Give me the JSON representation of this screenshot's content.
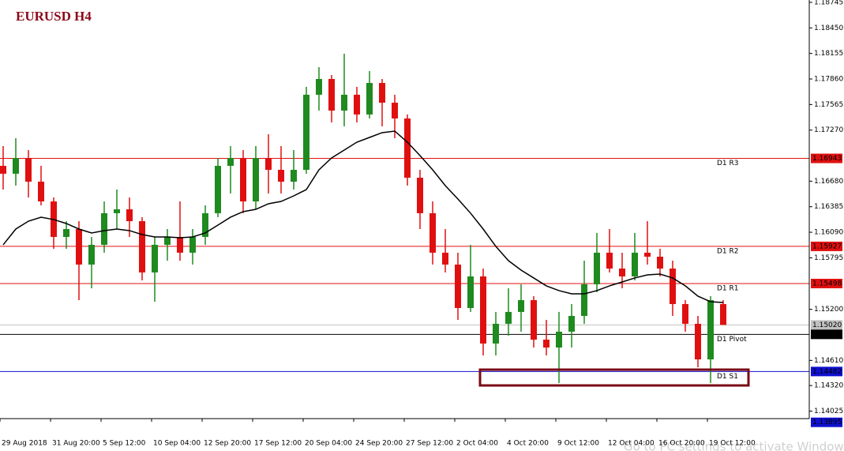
{
  "chart_data": {
    "type": "candlestick",
    "title": "EURUSD H4",
    "categories": [
      "29 Aug 2018",
      null,
      null,
      null,
      "31 Aug 20:00",
      null,
      null,
      null,
      "5 Sep 12:00",
      null,
      null,
      null,
      "10 Sep 04:00",
      null,
      null,
      null,
      "12 Sep 20:00",
      null,
      null,
      null,
      "17 Sep 12:00",
      null,
      null,
      null,
      "20 Sep 04:00",
      null,
      null,
      null,
      "24 Sep 20:00",
      null,
      null,
      null,
      "27 Sep 12:00",
      null,
      null,
      null,
      "2 Oct 04:00",
      null,
      null,
      null,
      "4 Oct 20:00",
      null,
      null,
      null,
      "9 Oct 12:00",
      null,
      null,
      null,
      "12 Oct 04:00",
      null,
      null,
      null,
      "16 Oct 20:00",
      null,
      null,
      null,
      "19 Oct 12:00",
      null
    ],
    "open": [
      1.16857,
      1.16766,
      1.16948,
      1.16674,
      1.16446,
      1.16036,
      1.16127,
      1.15717,
      1.15945,
      1.1631,
      1.16355,
      1.16218,
      1.15626,
      1.15945,
      1.16036,
      1.15854,
      1.16036,
      1.1631,
      1.16857,
      1.16948,
      1.16446,
      1.16948,
      1.16811,
      1.16674,
      1.16811,
      1.17678,
      1.1786,
      1.17495,
      1.17678,
      1.1745,
      1.17814,
      1.17586,
      1.17404,
      1.1672,
      1.1631,
      1.15854,
      1.15717,
      1.15215,
      1.1558,
      1.14805,
      1.15033,
      1.1517,
      1.15306,
      1.1485,
      1.14759,
      1.14942,
      1.15124,
      1.15489,
      1.15854,
      1.15671,
      1.1558,
      1.15854,
      1.15808,
      1.15671,
      1.15261,
      1.15033,
      1.14622,
      1.15261
    ],
    "high": [
      1.17085,
      1.17176,
      1.17039,
      1.16857,
      1.16492,
      1.16218,
      1.16218,
      1.16036,
      1.16446,
      1.16583,
      1.16492,
      1.16264,
      1.16036,
      1.16127,
      1.16446,
      1.16127,
      1.16401,
      1.16948,
      1.17085,
      1.17039,
      1.17085,
      1.17222,
      1.17085,
      1.17039,
      1.17769,
      1.17997,
      1.17906,
      1.18152,
      1.17769,
      1.17951,
      1.1786,
      1.17678,
      1.1745,
      1.16811,
      1.16446,
      1.16127,
      1.15854,
      1.15945,
      1.15671,
      1.1517,
      1.15443,
      1.15489,
      1.15352,
      1.15078,
      1.1517,
      1.15261,
      1.15762,
      1.16082,
      1.16127,
      1.15854,
      1.16082,
      1.16218,
      1.15899,
      1.15762,
      1.15306,
      1.15124,
      1.15352,
      1.15306
    ],
    "low": [
      1.16583,
      1.16629,
      1.16492,
      1.16401,
      1.15899,
      1.15899,
      1.15306,
      1.15443,
      1.15854,
      1.16127,
      1.16036,
      1.15534,
      1.15288,
      1.15762,
      1.15762,
      1.15717,
      1.15945,
      1.16264,
      1.16538,
      1.1631,
      1.16355,
      1.16538,
      1.16538,
      1.16583,
      1.16766,
      1.17495,
      1.17358,
      1.17313,
      1.17358,
      1.17404,
      1.17313,
      1.17176,
      1.16629,
      1.16127,
      1.15717,
      1.15626,
      1.15078,
      1.1517,
      1.14668,
      1.14668,
      1.14896,
      1.14942,
      1.14759,
      1.14668,
      1.14349,
      1.14759,
      1.15033,
      1.15398,
      1.15626,
      1.15443,
      1.15534,
      1.15717,
      1.1558,
      1.15124,
      1.14942,
      1.14531,
      1.14349,
      1.15033
    ],
    "close": [
      1.16766,
      1.16948,
      1.16674,
      1.16446,
      1.16036,
      1.16127,
      1.15717,
      1.15945,
      1.1631,
      1.16355,
      1.16218,
      1.15626,
      1.15945,
      1.16036,
      1.15854,
      1.16036,
      1.1631,
      1.16857,
      1.16948,
      1.16446,
      1.16948,
      1.16811,
      1.16674,
      1.16811,
      1.17678,
      1.1786,
      1.17495,
      1.17678,
      1.1745,
      1.17814,
      1.17586,
      1.17404,
      1.1672,
      1.1631,
      1.15854,
      1.15717,
      1.15215,
      1.1558,
      1.14805,
      1.15033,
      1.1517,
      1.15306,
      1.1485,
      1.14759,
      1.14942,
      1.15124,
      1.15489,
      1.15854,
      1.15671,
      1.1558,
      1.15854,
      1.15808,
      1.15671,
      1.15261,
      1.15033,
      1.14622,
      1.15306,
      1.1502
    ],
    "up_color": "#1f8a1f",
    "down_color": "#e01010",
    "ma": {
      "color": "#000000",
      "values": [
        1.15945,
        1.16127,
        1.16218,
        1.16264,
        1.16237,
        1.16191,
        1.16127,
        1.16082,
        1.16109,
        1.16127,
        1.16109,
        1.16063,
        1.16036,
        1.16036,
        1.16027,
        1.16036,
        1.16082,
        1.16173,
        1.16264,
        1.16328,
        1.16355,
        1.16419,
        1.16446,
        1.1651,
        1.16583,
        1.16811,
        1.16948,
        1.17039,
        1.1713,
        1.17185,
        1.1724,
        1.17258,
        1.1713,
        1.16975,
        1.16811,
        1.16629,
        1.16474,
        1.1631,
        1.16127,
        1.15927,
        1.15762,
        1.15653,
        1.15562,
        1.15471,
        1.15416,
        1.15379,
        1.15379,
        1.15416,
        1.15471,
        1.15516,
        1.15562,
        1.15598,
        1.15607,
        1.15562,
        1.15471,
        1.15352,
        1.15288,
        1.15279
      ]
    },
    "levels": [
      {
        "name": "D1 R3",
        "value": 1.16943,
        "tag": "1.16943",
        "color": "#e01010",
        "line": true
      },
      {
        "name": "D1 R2",
        "value": 1.15927,
        "tag": "1.15927",
        "color": "#e01010",
        "line": true
      },
      {
        "name": "D1 R1",
        "value": 1.15498,
        "tag": "1.15498",
        "color": "#e01010",
        "line": true
      },
      {
        "value": 1.1502,
        "tag": "1.15020",
        "color": "#c0c0c0",
        "line": true
      },
      {
        "name": "D1 Pivot",
        "value": 1.14911,
        "tag": "1.14911",
        "color": "#000000",
        "line": true
      },
      {
        "name": "D1 S1",
        "value": 1.14482,
        "tag": "1.14482",
        "color": "#1010d0",
        "line": true
      },
      {
        "value": 1.13895,
        "tag": "1.13895",
        "color": "#1010d0",
        "line": false
      }
    ],
    "ylim": [
      1.13938,
      1.18772
    ],
    "yticks": [
      {
        "value": 1.18745,
        "label": "1.18745"
      },
      {
        "value": 1.1845,
        "label": "1.18450"
      },
      {
        "value": 1.18155,
        "label": "1.18155"
      },
      {
        "value": 1.1786,
        "label": "1.17860"
      },
      {
        "value": 1.17565,
        "label": "1.17565"
      },
      {
        "value": 1.1727,
        "label": "1.17270"
      },
      {
        "value": 1.1668,
        "label": "1.16680"
      },
      {
        "value": 1.16385,
        "label": "1.16385"
      },
      {
        "value": 1.1609,
        "label": "1.16090"
      },
      {
        "value": 1.15795,
        "label": "1.15795"
      },
      {
        "value": 1.152,
        "label": "1.15200"
      },
      {
        "value": 1.1461,
        "label": "1.14610"
      },
      {
        "value": 1.1432,
        "label": "1.14320"
      },
      {
        "value": 1.14025,
        "label": "1.14025"
      }
    ],
    "watermark": "Go to PC settings to activate Windows."
  }
}
